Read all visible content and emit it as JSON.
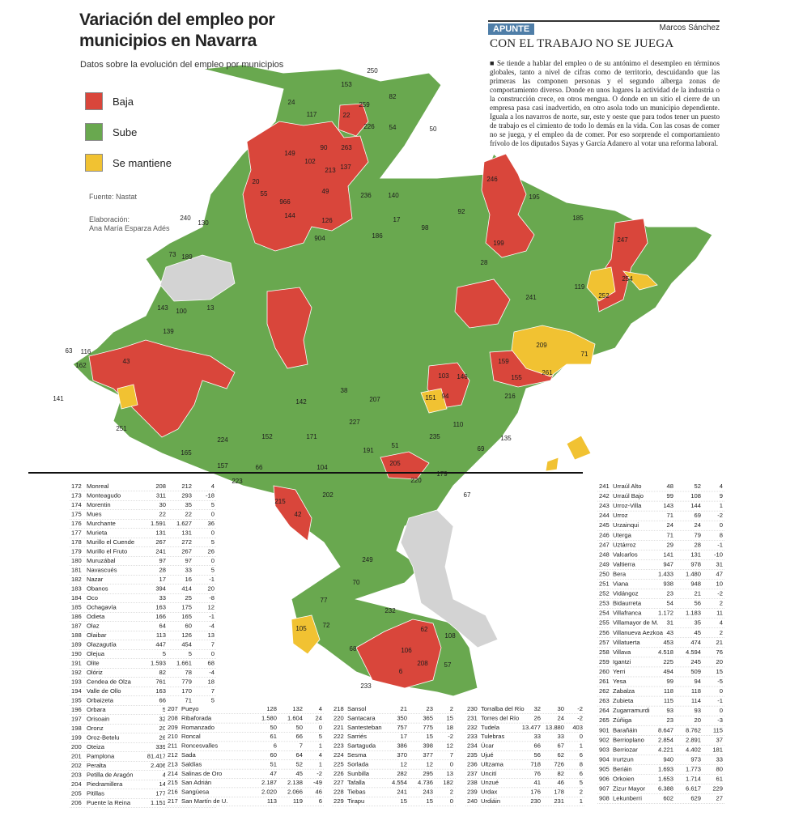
{
  "header": {
    "title": "Variación del empleo por municipios en Navarra",
    "subtitle": "Datos sobre la evolución del empleo por municipios"
  },
  "legend": [
    {
      "label": "Baja",
      "color": "#d9463b"
    },
    {
      "label": "Sube",
      "color": "#69a84f"
    },
    {
      "label": "Se mantiene",
      "color": "#f1c232"
    }
  ],
  "source": "Fuente: Nastat",
  "credit": {
    "label": "Elaboración:",
    "name": "Ana María Esparza Adés"
  },
  "article": {
    "section": "APUNTE",
    "author": "Marcos Sánchez",
    "headline": "CON EL TRABAJO NO SE JUEGA",
    "body": "■ Se tiende a hablar del empleo o de su antónimo el desempleo en términos globales, tanto a nivel de cifras como de territorio, descuidando que las primeras las componen personas y el segundo alberga zonas de comportamiento diverso. Donde en unos lugares la actividad de la industria o la construcción crece, en otros mengua. O donde en un sitio el cierre de un empresa pasa casi inadvertido, en otro asola todo un municipio dependiente. Iguala a los navarros de norte, sur, este y oeste que para todos tener un puesto de trabajo es el cimiento de todo lo demás en la vida. Con las cosas de comer no se juega, y el empleo da de comer. Por eso sorprende el comportamiento frívolo de los diputados Sayas y García Adanero al votar una reforma laboral."
  },
  "map": {
    "labels": [
      "250",
      "153",
      "24",
      "117",
      "22",
      "259",
      "82",
      "226",
      "54",
      "50",
      "149",
      "90",
      "102",
      "213",
      "137",
      "263",
      "20",
      "55",
      "966",
      "144",
      "49",
      "236",
      "140",
      "17",
      "98",
      "92",
      "186",
      "126",
      "904",
      "246",
      "195",
      "185",
      "247",
      "199",
      "28",
      "241",
      "252",
      "119",
      "254",
      "209",
      "71",
      "159",
      "261",
      "155",
      "103",
      "146",
      "94",
      "151",
      "216",
      "135",
      "69",
      "205",
      "220",
      "179",
      "67",
      "215",
      "42",
      "202",
      "249",
      "70",
      "77",
      "232",
      "62",
      "105",
      "72",
      "68",
      "106",
      "208",
      "57",
      "108",
      "233",
      "6",
      "141",
      "63",
      "116",
      "162",
      "43",
      "251",
      "165",
      "224",
      "157",
      "66",
      "223",
      "104",
      "171",
      "152",
      "142",
      "227",
      "191",
      "51",
      "235",
      "110",
      "207",
      "38",
      "240",
      "130",
      "73",
      "189",
      "139",
      "143",
      "100",
      "13"
    ]
  },
  "table": {
    "columns": [
      [
        [
          "172",
          "Monreal",
          "208",
          "212",
          "4"
        ],
        [
          "173",
          "Monteagudo",
          "311",
          "293",
          "-18"
        ],
        [
          "174",
          "Morentin",
          "30",
          "35",
          "5"
        ],
        [
          "175",
          "Mues",
          "22",
          "22",
          "0"
        ],
        [
          "176",
          "Murchante",
          "1.591",
          "1.627",
          "36"
        ],
        [
          "177",
          "Murieta",
          "131",
          "131",
          "0"
        ],
        [
          "178",
          "Murillo el Cuende",
          "267",
          "272",
          "5"
        ],
        [
          "179",
          "Murillo el Fruto",
          "241",
          "267",
          "26"
        ],
        [
          "180",
          "Muruzábal",
          "97",
          "97",
          "0"
        ],
        [
          "181",
          "Navascués",
          "28",
          "33",
          "5"
        ],
        [
          "182",
          "Nazar",
          "17",
          "16",
          "-1"
        ],
        [
          "183",
          "Obanos",
          "394",
          "414",
          "20"
        ],
        [
          "184",
          "Oco",
          "33",
          "25",
          "-8"
        ],
        [
          "185",
          "Ochagavía",
          "163",
          "175",
          "12"
        ],
        [
          "186",
          "Odieta",
          "166",
          "165",
          "-1"
        ],
        [
          "187",
          "Olaz",
          "64",
          "60",
          "-4"
        ],
        [
          "188",
          "Olaibar",
          "113",
          "126",
          "13"
        ],
        [
          "189",
          "Olazagutía",
          "447",
          "454",
          "7"
        ],
        [
          "190",
          "Olejua",
          "5",
          "5",
          "0"
        ],
        [
          "191",
          "Olite",
          "1.593",
          "1.661",
          "68"
        ],
        [
          "192",
          "Olóriz",
          "82",
          "78",
          "-4"
        ],
        [
          "193",
          "Cendea de Olza",
          "761",
          "779",
          "18"
        ],
        [
          "194",
          "Valle de Ollo",
          "163",
          "170",
          "7"
        ],
        [
          "195",
          "Orbaizeta",
          "66",
          "71",
          "5"
        ],
        [
          "196",
          "Orbara",
          "5",
          "5",
          "0"
        ],
        [
          "197",
          "Orisoain",
          "32",
          "32",
          "0"
        ],
        [
          "198",
          "Oronz",
          "20",
          "21",
          "1"
        ],
        [
          "199",
          "Oroz-Betelu",
          "26",
          "25",
          "-1"
        ],
        [
          "200",
          "Oteiza",
          "339",
          "346",
          "7"
        ],
        [
          "201",
          "Pamplona",
          "81.417",
          "84.020",
          "2.603"
        ],
        [
          "202",
          "Peralta",
          "2.406",
          "2.510",
          "104"
        ],
        [
          "203",
          "Petilla de Aragón",
          "4",
          "4",
          "0"
        ],
        [
          "204",
          "Piedramillera",
          "14",
          "13",
          "-1"
        ],
        [
          "205",
          "Pitillas",
          "177",
          "176",
          "-1"
        ],
        [
          "206",
          "Puente la Reina",
          "1.151",
          "1.163",
          "12"
        ]
      ],
      [
        [
          "207",
          "Pueyo",
          "128",
          "132",
          "4"
        ],
        [
          "208",
          "Ribaforada",
          "1.580",
          "1.604",
          "24"
        ],
        [
          "209",
          "Romanzado",
          "50",
          "50",
          "0"
        ],
        [
          "210",
          "Roncal",
          "61",
          "66",
          "5"
        ],
        [
          "211",
          "Roncesvalles",
          "6",
          "7",
          "1"
        ],
        [
          "212",
          "Sada",
          "60",
          "64",
          "4"
        ],
        [
          "213",
          "Saldías",
          "51",
          "52",
          "1"
        ],
        [
          "214",
          "Salinas de Oro",
          "47",
          "45",
          "-2"
        ],
        [
          "215",
          "San Adrián",
          "2.187",
          "2.138",
          "-49"
        ],
        [
          "216",
          "Sangüesa",
          "2.020",
          "2.066",
          "46"
        ],
        [
          "217",
          "San Martín de U.",
          "113",
          "119",
          "6"
        ]
      ],
      [
        [
          "218",
          "Sansol",
          "21",
          "23",
          "2"
        ],
        [
          "220",
          "Santacara",
          "350",
          "365",
          "15"
        ],
        [
          "221",
          "Santesteban",
          "757",
          "775",
          "18"
        ],
        [
          "222",
          "Sarriés",
          "17",
          "15",
          "-2"
        ],
        [
          "223",
          "Sartaguda",
          "386",
          "398",
          "12"
        ],
        [
          "224",
          "Sesma",
          "370",
          "377",
          "7"
        ],
        [
          "225",
          "Sorlada",
          "12",
          "12",
          "0"
        ],
        [
          "226",
          "Sunbilla",
          "282",
          "295",
          "13"
        ],
        [
          "227",
          "Tafalla",
          "4.554",
          "4.736",
          "182"
        ],
        [
          "228",
          "Tiebas",
          "241",
          "243",
          "2"
        ],
        [
          "229",
          "Tirapu",
          "15",
          "15",
          "0"
        ]
      ],
      [
        [
          "230",
          "Torralba del Río",
          "32",
          "30",
          "-2"
        ],
        [
          "231",
          "Torres del Río",
          "26",
          "24",
          "-2"
        ],
        [
          "232",
          "Tudela",
          "13.477",
          "13.880",
          "403"
        ],
        [
          "233",
          "Tulebras",
          "33",
          "33",
          "0"
        ],
        [
          "234",
          "Úcar",
          "66",
          "67",
          "1"
        ],
        [
          "235",
          "Ujué",
          "56",
          "62",
          "6"
        ],
        [
          "236",
          "Ultzama",
          "718",
          "726",
          "8"
        ],
        [
          "237",
          "Uncití",
          "76",
          "82",
          "6"
        ],
        [
          "238",
          "Unzué",
          "41",
          "46",
          "5"
        ],
        [
          "239",
          "Urdax",
          "176",
          "178",
          "2"
        ],
        [
          "240",
          "Urdiáin",
          "230",
          "231",
          "1"
        ]
      ],
      [
        [
          "241",
          "Urraúl Alto",
          "48",
          "52",
          "4"
        ],
        [
          "242",
          "Urraúl Bajo",
          "99",
          "108",
          "9"
        ],
        [
          "243",
          "Urroz-Villa",
          "143",
          "144",
          "1"
        ],
        [
          "244",
          "Urroz",
          "71",
          "69",
          "-2"
        ],
        [
          "245",
          "Urzainqui",
          "24",
          "24",
          "0"
        ],
        [
          "246",
          "Uterga",
          "71",
          "79",
          "8"
        ],
        [
          "247",
          "Uztárroz",
          "29",
          "28",
          "-1"
        ],
        [
          "248",
          "Valcarlos",
          "141",
          "131",
          "-10"
        ],
        [
          "249",
          "Valtierra",
          "947",
          "978",
          "31"
        ],
        [
          "250",
          "Bera",
          "1.433",
          "1.480",
          "47"
        ],
        [
          "251",
          "Viana",
          "938",
          "948",
          "10"
        ],
        [
          "252",
          "Vidángoz",
          "23",
          "21",
          "-2"
        ],
        [
          "253",
          "Bidaurreta",
          "54",
          "56",
          "2"
        ],
        [
          "254",
          "Villafranca",
          "1.172",
          "1.183",
          "11"
        ],
        [
          "255",
          "Villamayor de M.",
          "31",
          "35",
          "4"
        ],
        [
          "256",
          "Villanueva Aezkoa",
          "43",
          "45",
          "2"
        ],
        [
          "257",
          "Villatuerta",
          "453",
          "474",
          "21"
        ],
        [
          "258",
          "Villava",
          "4.518",
          "4.594",
          "76"
        ],
        [
          "259",
          "Igantzi",
          "225",
          "245",
          "20"
        ],
        [
          "260",
          "Yerri",
          "494",
          "509",
          "15"
        ],
        [
          "261",
          "Yesa",
          "99",
          "94",
          "-5"
        ],
        [
          "262",
          "Zabalza",
          "118",
          "118",
          "0"
        ],
        [
          "263",
          "Zubieta",
          "115",
          "114",
          "-1"
        ],
        [
          "264",
          "Zugarramurdi",
          "93",
          "93",
          "0"
        ],
        [
          "265",
          "Zúñiga",
          "23",
          "20",
          "-3"
        ],
        [
          "901",
          "Barañáin",
          "8.647",
          "8.762",
          "115"
        ],
        [
          "902",
          "Berrioplano",
          "2.854",
          "2.891",
          "37"
        ],
        [
          "903",
          "Berriozar",
          "4.221",
          "4.402",
          "181"
        ],
        [
          "904",
          "Irurtzun",
          "940",
          "973",
          "33"
        ],
        [
          "905",
          "Beriáin",
          "1.693",
          "1.773",
          "80"
        ],
        [
          "906",
          "Orkoien",
          "1.653",
          "1.714",
          "61"
        ],
        [
          "907",
          "Zizur Mayor",
          "6.388",
          "6.617",
          "229"
        ],
        [
          "908",
          "Lekunberri",
          "602",
          "629",
          "27"
        ]
      ]
    ]
  }
}
